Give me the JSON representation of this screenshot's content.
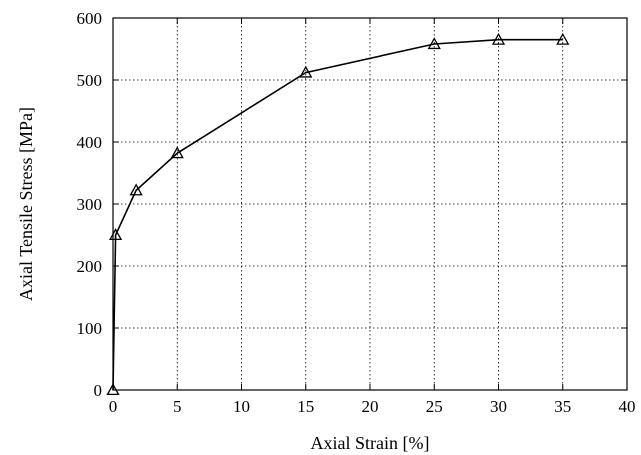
{
  "chart_data": {
    "type": "line",
    "title": "",
    "xlabel": "Axial Strain [%]",
    "ylabel": "Axial Tensile Stress [MPa]",
    "xlim": [
      0,
      40
    ],
    "ylim": [
      0,
      600
    ],
    "xticks": [
      0,
      5,
      10,
      15,
      20,
      25,
      30,
      35,
      40
    ],
    "yticks": [
      0,
      100,
      200,
      300,
      400,
      500,
      600
    ],
    "grid": true,
    "marker": "triangle-open",
    "series": [
      {
        "x": [
          0,
          0.2,
          1.8,
          5,
          15,
          25,
          30,
          35
        ],
        "y": [
          0,
          250,
          322,
          382,
          512,
          558,
          565,
          565
        ]
      }
    ]
  }
}
